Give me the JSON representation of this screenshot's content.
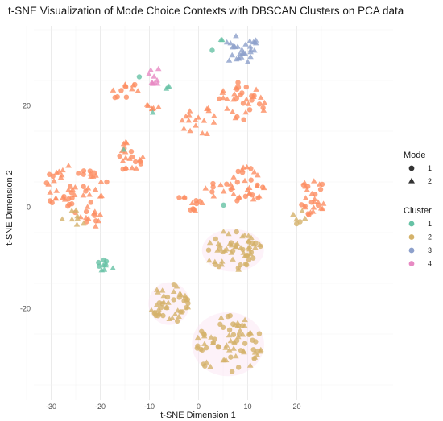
{
  "chart_data": {
    "type": "scatter",
    "title": "t-SNE Visualization of Mode Choice Contexts with DBSCAN Clusters on PCA data",
    "xlabel": "t-SNE Dimension 1",
    "ylabel": "t-SNE Dimension 2",
    "xlim": [
      -35,
      30
    ],
    "ylim": [
      -38,
      35
    ],
    "xticks": [
      -30,
      -20,
      -10,
      0,
      10,
      20
    ],
    "yticks": [
      -20,
      0,
      20
    ],
    "grid": true,
    "legend_position": "right",
    "shape_legend": {
      "title": "Mode",
      "entries": [
        {
          "label": "1",
          "shape": "circle"
        },
        {
          "label": "2",
          "shape": "triangle"
        }
      ]
    },
    "color_legend": {
      "title": "Cluster",
      "entries": [
        {
          "label": "1",
          "color": "#66c2a5"
        },
        {
          "label": "2",
          "color": "#d4b26a"
        },
        {
          "label": "3",
          "color": "#8da0cb"
        },
        {
          "label": "4",
          "color": "#e78ac3"
        }
      ]
    },
    "noise_color": "#fc8d62",
    "groups": [
      {
        "cluster": "noise",
        "cx": -28,
        "cy": 4,
        "rx": 3.5,
        "ry": 5,
        "n": 30,
        "mode": "mixed"
      },
      {
        "cluster": "noise",
        "cx": -22,
        "cy": 2,
        "rx": 4,
        "ry": 6,
        "n": 35,
        "mode": "mixed"
      },
      {
        "cluster": "noise",
        "cx": -14,
        "cy": 10,
        "rx": 3,
        "ry": 3,
        "n": 22,
        "mode": "mixed"
      },
      {
        "cluster": "noise",
        "cx": -15,
        "cy": 23,
        "rx": 3,
        "ry": 2,
        "n": 12,
        "mode": "mixed"
      },
      {
        "cluster": "noise",
        "cx": -9,
        "cy": 20,
        "rx": 1.5,
        "ry": 1,
        "n": 6,
        "mode": "triangle"
      },
      {
        "cluster": "noise",
        "cx": 0,
        "cy": 17,
        "rx": 3.5,
        "ry": 3,
        "n": 18,
        "mode": "triangle"
      },
      {
        "cluster": "noise",
        "cx": 9,
        "cy": 21,
        "rx": 5,
        "ry": 4,
        "n": 35,
        "mode": "mixed"
      },
      {
        "cluster": "noise",
        "cx": 4,
        "cy": 3.5,
        "rx": 3,
        "ry": 1.5,
        "n": 10,
        "mode": "mixed"
      },
      {
        "cluster": "noise",
        "cx": -1.5,
        "cy": 1,
        "rx": 3,
        "ry": 2,
        "n": 12,
        "mode": "mixed"
      },
      {
        "cluster": "noise",
        "cx": 10,
        "cy": 4,
        "rx": 3.5,
        "ry": 4,
        "n": 30,
        "mode": "mixed"
      },
      {
        "cluster": "noise",
        "cx": 23,
        "cy": 2,
        "rx": 3,
        "ry": 4,
        "n": 28,
        "mode": "mixed"
      },
      {
        "cluster": "1",
        "cx": -19,
        "cy": -11.5,
        "rx": 2,
        "ry": 1.2,
        "n": 10,
        "mode": "mixed"
      },
      {
        "cluster": "1",
        "cx": 5,
        "cy": 33,
        "rx": 0.5,
        "ry": 0.4,
        "n": 2,
        "mode": "triangle"
      },
      {
        "cluster": "1",
        "cx": -6,
        "cy": 23.5,
        "rx": 1,
        "ry": 0.4,
        "n": 3,
        "mode": "triangle"
      },
      {
        "cluster": "1",
        "cx": -12,
        "cy": 25.5,
        "rx": 0.3,
        "ry": 0.3,
        "n": 1,
        "mode": "circle"
      },
      {
        "cluster": "1",
        "cx": 5,
        "cy": 0.5,
        "rx": 0.3,
        "ry": 0.3,
        "n": 1,
        "mode": "circle"
      },
      {
        "cluster": "1",
        "cx": -15,
        "cy": 11.5,
        "rx": 0.3,
        "ry": 0.3,
        "n": 1,
        "mode": "triangle"
      },
      {
        "cluster": "1",
        "cx": 3,
        "cy": 31,
        "rx": 0.3,
        "ry": 0.3,
        "n": 1,
        "mode": "circle"
      },
      {
        "cluster": "1",
        "cx": -9.5,
        "cy": 18.5,
        "rx": 0.3,
        "ry": 0.3,
        "n": 1,
        "mode": "triangle"
      },
      {
        "cluster": "2",
        "cx": 7,
        "cy": -8.5,
        "rx": 6,
        "ry": 4,
        "n": 60,
        "mode": "mixed"
      },
      {
        "cluster": "2",
        "cx": -6,
        "cy": -19,
        "rx": 4,
        "ry": 4,
        "n": 45,
        "mode": "mixed"
      },
      {
        "cluster": "2",
        "cx": 6,
        "cy": -27,
        "rx": 7,
        "ry": 6,
        "n": 75,
        "mode": "mixed"
      },
      {
        "cluster": "2",
        "cx": -25,
        "cy": -2,
        "rx": 3,
        "ry": 1.5,
        "n": 8,
        "mode": "triangle"
      },
      {
        "cluster": "2",
        "cx": 20,
        "cy": -2,
        "rx": 2,
        "ry": 1.5,
        "n": 6,
        "mode": "mixed"
      },
      {
        "cluster": "3",
        "cx": 9,
        "cy": 31,
        "rx": 4,
        "ry": 3,
        "n": 30,
        "mode": "triangle"
      },
      {
        "cluster": "4",
        "cx": -9,
        "cy": 26,
        "rx": 1.5,
        "ry": 2,
        "n": 10,
        "mode": "triangle"
      }
    ]
  }
}
